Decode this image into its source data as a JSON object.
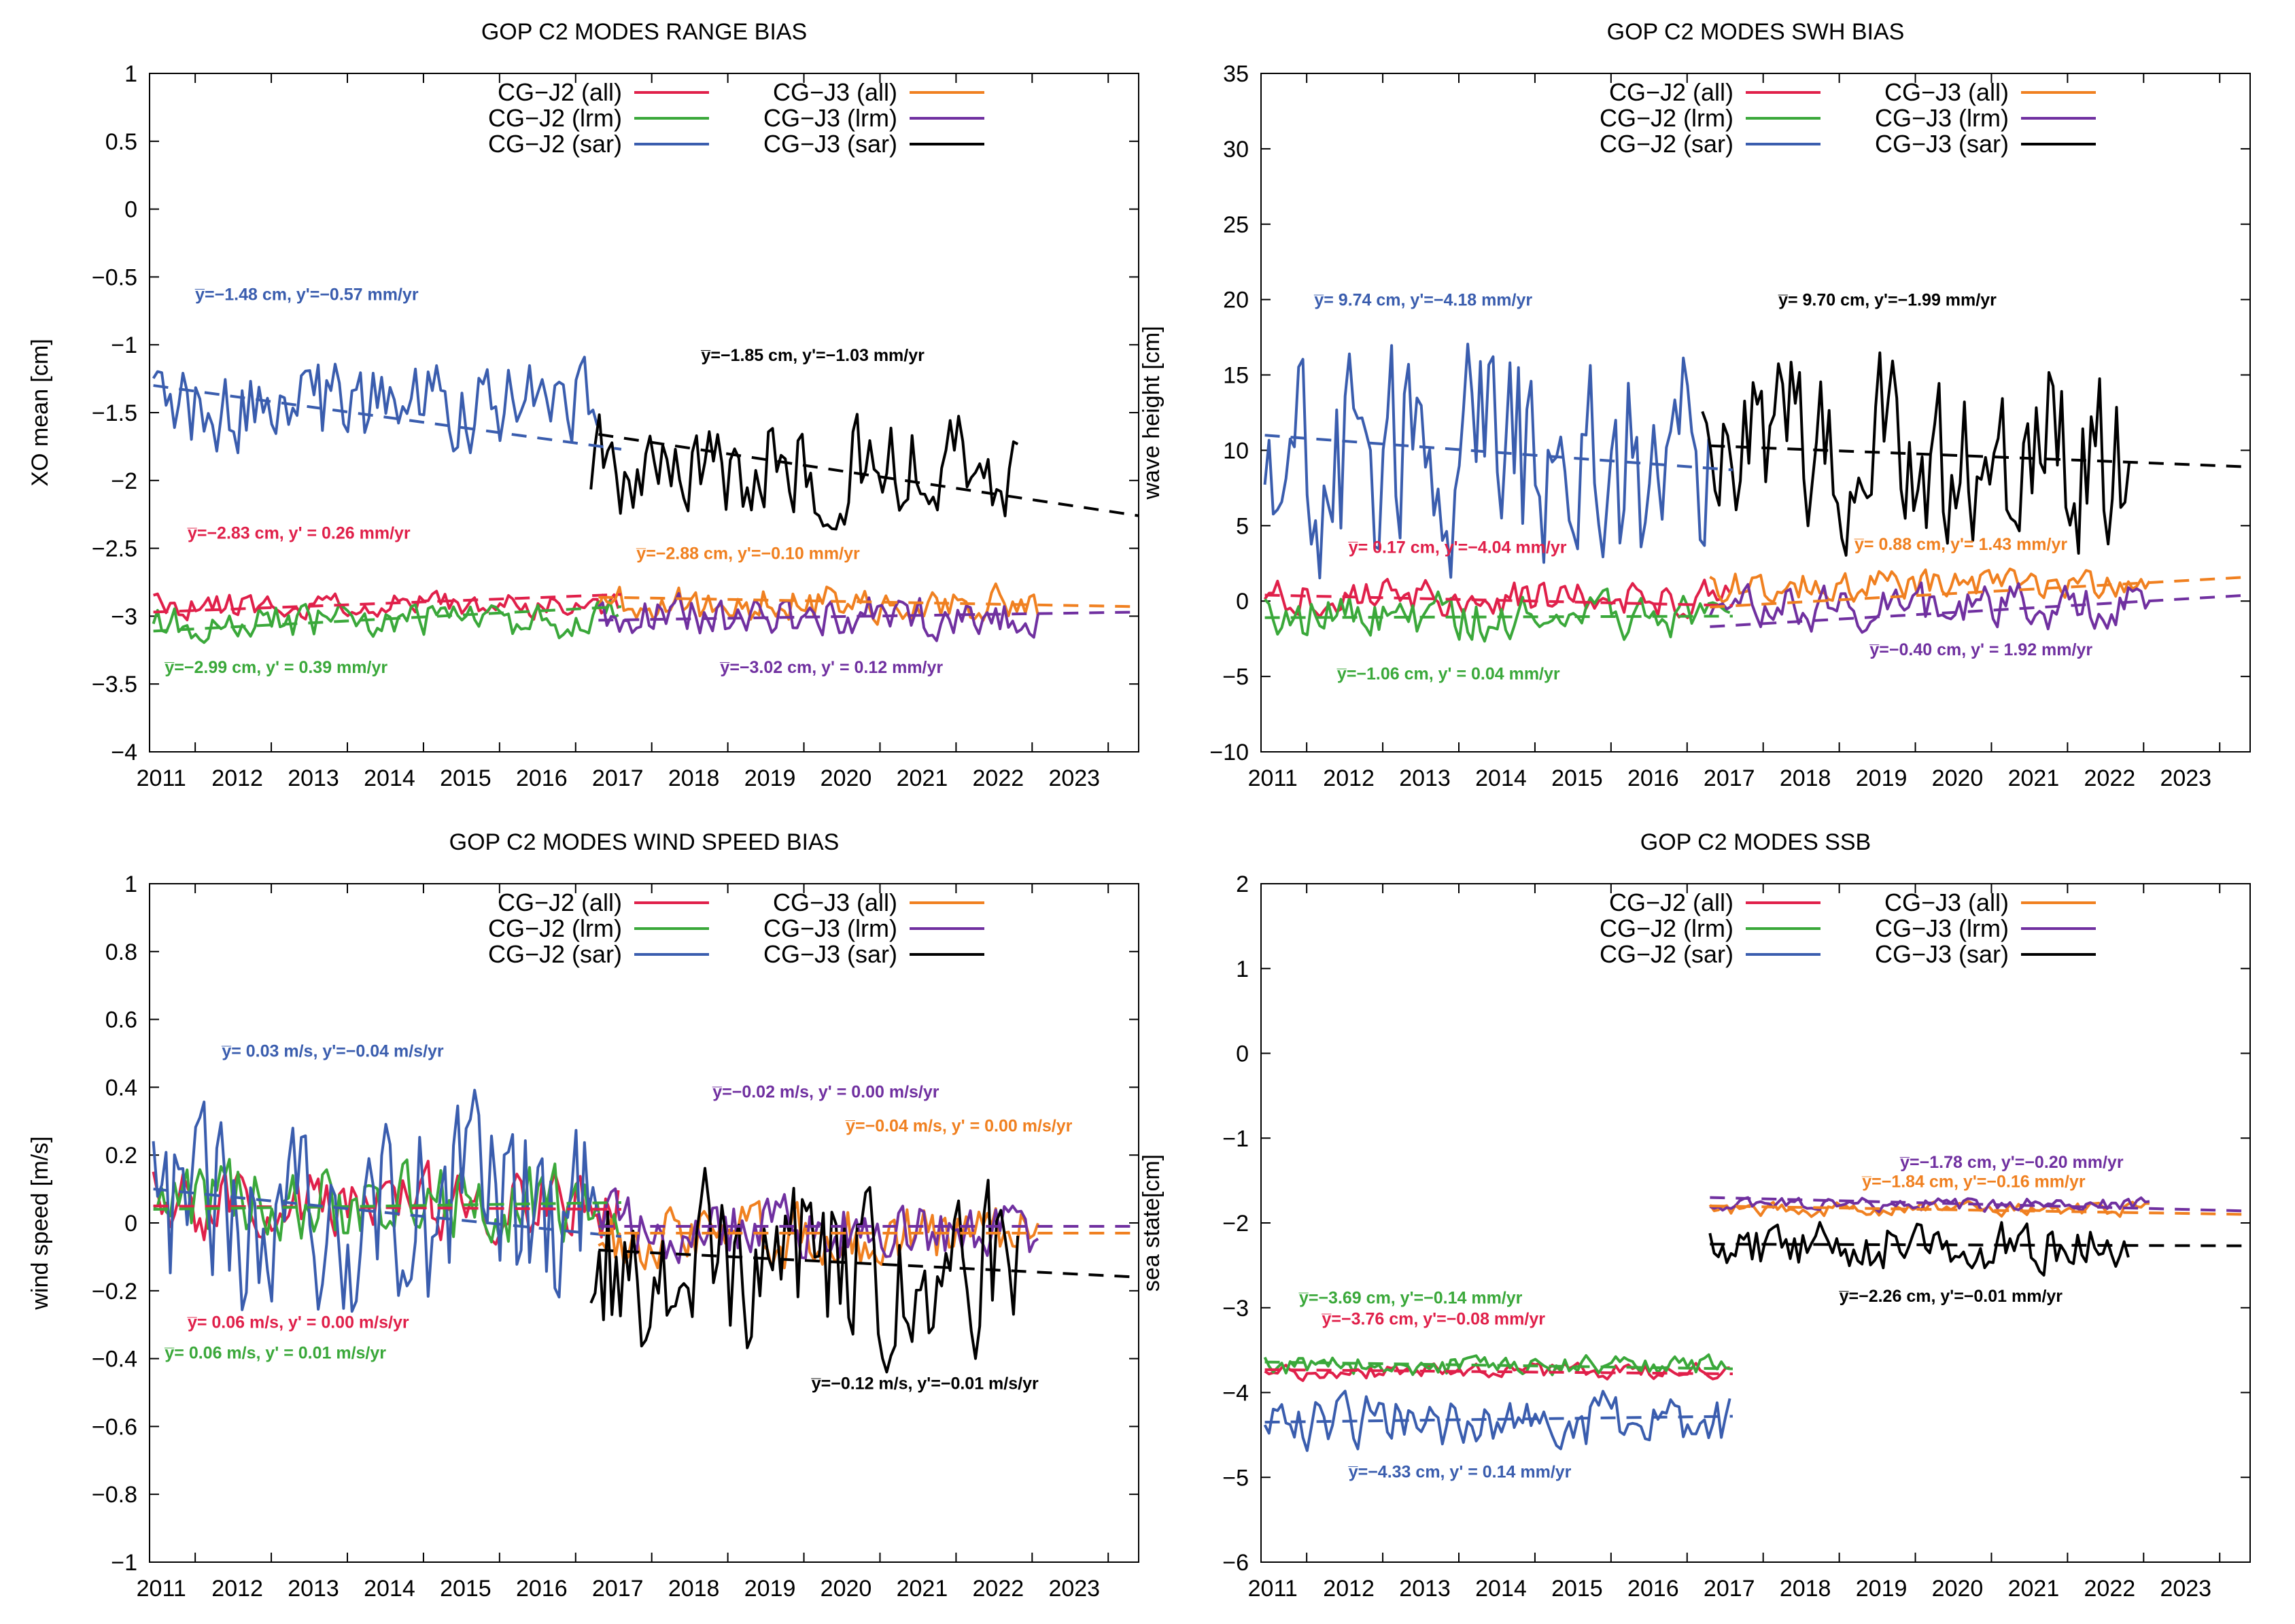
{
  "figure": {
    "colors": {
      "cg_j2_all": "#e0204a",
      "cg_j2_lrm": "#3aa83a",
      "cg_j2_sar": "#3a5dae",
      "cg_j3_all": "#f08020",
      "cg_j3_lrm": "#7030a0",
      "cg_j3_sar": "#000000"
    }
  },
  "chart_data": [
    {
      "id": "range",
      "type": "line",
      "title": "GOP C2 MODES RANGE BIAS",
      "ylabel": "XO mean [cm]",
      "xlabel": "",
      "xlim": [
        2010.4,
        2023.4
      ],
      "ylim": [
        -4,
        1
      ],
      "yticks": [
        -4,
        -3.5,
        -3,
        -2.5,
        -2,
        -1.5,
        -1,
        -0.5,
        0,
        0.5,
        1
      ],
      "ytick_labels": [
        "−4",
        "−3.5",
        "−3",
        "−2.5",
        "−2",
        "−1.5",
        "−1",
        "−0.5",
        "0",
        "0.5",
        "1"
      ],
      "xticks": [
        2011,
        2012,
        2013,
        2014,
        2015,
        2016,
        2017,
        2018,
        2019,
        2020,
        2021,
        2022,
        2023
      ],
      "xtick_labels": [
        "2011",
        "2012",
        "2013",
        "2014",
        "2015",
        "2016",
        "2017",
        "2018",
        "2019",
        "2020",
        "2021",
        "2022",
        "2023"
      ],
      "legend": [
        "CG−J2 (all)",
        "CG−J2 (lrm)",
        "CG−J2 (sar)",
        "CG−J3 (all)",
        "CG−J3 (lrm)",
        "CG−J3 (sar)"
      ],
      "series": [
        {
          "name": "CG−J2 (all)",
          "key": "cg_j2_all",
          "x_start": 2010.45,
          "x_end": 2016.6,
          "center": -2.92,
          "amp": 0.08,
          "seed": 11
        },
        {
          "name": "CG−J2 (lrm)",
          "key": "cg_j2_lrm",
          "x_start": 2010.45,
          "x_end": 2016.6,
          "center": -3.03,
          "amp": 0.12,
          "seed": 12
        },
        {
          "name": "CG−J2 (sar)",
          "key": "cg_j2_sar",
          "x_start": 2010.45,
          "x_end": 2016.3,
          "center": -1.45,
          "amp": 0.28,
          "seed": 13
        },
        {
          "name": "CG−J3 (all)",
          "key": "cg_j3_all",
          "x_start": 2016.3,
          "x_end": 2022.1,
          "center": -2.9,
          "amp": 0.12,
          "seed": 14
        },
        {
          "name": "CG−J3 (lrm)",
          "key": "cg_j3_lrm",
          "x_start": 2016.3,
          "x_end": 2022.1,
          "center": -3.0,
          "amp": 0.13,
          "seed": 15
        },
        {
          "name": "CG−J3 (sar)",
          "key": "cg_j3_sar",
          "x_start": 2016.2,
          "x_end": 2021.85,
          "center": -1.85,
          "amp": 0.35,
          "seed": 16
        }
      ],
      "trends": [
        {
          "key": "cg_j2_all",
          "x": [
            2010.45,
            2016.6
          ],
          "y": [
            -2.97,
            -2.84
          ]
        },
        {
          "key": "cg_j2_lrm",
          "x": [
            2010.45,
            2016.6
          ],
          "y": [
            -3.11,
            -2.93
          ]
        },
        {
          "key": "cg_j2_sar",
          "x": [
            2010.45,
            2016.6
          ],
          "y": [
            -1.3,
            -1.77
          ]
        },
        {
          "key": "cg_j3_all",
          "x": [
            2016.3,
            2023.4
          ],
          "y": [
            -2.86,
            -2.93
          ]
        },
        {
          "key": "cg_j3_lrm",
          "x": [
            2016.3,
            2023.4
          ],
          "y": [
            -3.03,
            -2.97
          ]
        },
        {
          "key": "cg_j3_sar",
          "x": [
            2016.3,
            2023.4
          ],
          "y": [
            -1.66,
            -2.26
          ]
        }
      ],
      "annotations": [
        {
          "key": "cg_j2_sar",
          "text": "y̅=−1.48 cm, y'=−0.57 mm/yr",
          "x": 2011.0,
          "y": -0.67
        },
        {
          "key": "cg_j3_sar",
          "text": "y̅=−1.85 cm, y'=−1.03 mm/yr",
          "x": 2017.65,
          "y": -1.12
        },
        {
          "key": "cg_j2_all",
          "text": "y̅=−2.83 cm, y' = 0.26 mm/yr",
          "x": 2010.9,
          "y": -2.43
        },
        {
          "key": "cg_j3_all",
          "text": "y̅=−2.88 cm, y'=−0.10 mm/yr",
          "x": 2016.8,
          "y": -2.58
        },
        {
          "key": "cg_j2_lrm",
          "text": "y̅=−2.99 cm, y' = 0.39 mm/yr",
          "x": 2010.6,
          "y": -3.42
        },
        {
          "key": "cg_j3_lrm",
          "text": "y̅=−3.02 cm, y' = 0.12 mm/yr",
          "x": 2017.9,
          "y": -3.42
        }
      ]
    },
    {
      "id": "swh",
      "type": "line",
      "title": "GOP C2 MODES SWH BIAS",
      "ylabel": "wave height [cm]",
      "xlabel": "",
      "xlim": [
        2010.4,
        2023.4
      ],
      "ylim": [
        -10,
        35
      ],
      "yticks": [
        -10,
        -5,
        0,
        5,
        10,
        15,
        20,
        25,
        30,
        35
      ],
      "ytick_labels": [
        "−10",
        "−5",
        "0",
        "5",
        "10",
        "15",
        "20",
        "25",
        "30",
        "35"
      ],
      "xticks": [
        2011,
        2012,
        2013,
        2014,
        2015,
        2016,
        2017,
        2018,
        2019,
        2020,
        2021,
        2022,
        2023
      ],
      "xtick_labels": [
        "2011",
        "2012",
        "2013",
        "2014",
        "2015",
        "2016",
        "2017",
        "2018",
        "2019",
        "2020",
        "2021",
        "2022",
        "2023"
      ],
      "legend": [
        "CG−J2 (all)",
        "CG−J2 (lrm)",
        "CG−J2 (sar)",
        "CG−J3 (all)",
        "CG−J3 (lrm)",
        "CG−J3 (sar)"
      ],
      "series": [
        {
          "name": "CG−J2 (all)",
          "key": "cg_j2_all",
          "x_start": 2010.45,
          "x_end": 2016.6,
          "center": 0.2,
          "amp": 1.0,
          "seed": 21
        },
        {
          "name": "CG−J2 (lrm)",
          "key": "cg_j2_lrm",
          "x_start": 2010.45,
          "x_end": 2016.6,
          "center": -1.0,
          "amp": 1.3,
          "seed": 22
        },
        {
          "name": "CG−J2 (sar)",
          "key": "cg_j2_sar",
          "x_start": 2010.45,
          "x_end": 2016.3,
          "center": 9.5,
          "amp": 6.5,
          "seed": 23
        },
        {
          "name": "CG−J3 (all)",
          "key": "cg_j3_all",
          "x_start": 2016.3,
          "x_end": 2022.1,
          "center": 1.0,
          "amp": 0.9,
          "seed": 24
        },
        {
          "name": "CG−J3 (lrm)",
          "key": "cg_j3_lrm",
          "x_start": 2016.3,
          "x_end": 2022.1,
          "center": -0.4,
          "amp": 1.3,
          "seed": 25
        },
        {
          "name": "CG−J3 (sar)",
          "key": "cg_j3_sar",
          "x_start": 2016.2,
          "x_end": 2021.85,
          "center": 10.0,
          "amp": 5.5,
          "seed": 26
        }
      ],
      "trends": [
        {
          "key": "cg_j2_all",
          "x": [
            2010.45,
            2016.6
          ],
          "y": [
            0.4,
            -0.3
          ]
        },
        {
          "key": "cg_j2_lrm",
          "x": [
            2010.45,
            2016.6
          ],
          "y": [
            -1.1,
            -1.0
          ]
        },
        {
          "key": "cg_j2_sar",
          "x": [
            2010.45,
            2016.6
          ],
          "y": [
            11.0,
            8.7
          ]
        },
        {
          "key": "cg_j3_all",
          "x": [
            2016.3,
            2023.4
          ],
          "y": [
            -0.4,
            1.6
          ]
        },
        {
          "key": "cg_j3_lrm",
          "x": [
            2016.3,
            2023.4
          ],
          "y": [
            -1.7,
            0.4
          ]
        },
        {
          "key": "cg_j3_sar",
          "x": [
            2016.3,
            2023.4
          ],
          "y": [
            10.3,
            8.9
          ]
        }
      ],
      "annotations": [
        {
          "key": "cg_j2_sar",
          "text": "y̅= 9.74 cm, y'=−4.18 mm/yr",
          "x": 2011.1,
          "y": 19.6
        },
        {
          "key": "cg_j3_sar",
          "text": "y̅= 9.70 cm, y'=−1.99 mm/yr",
          "x": 2017.2,
          "y": 19.6
        },
        {
          "key": "cg_j2_all",
          "text": "y̅= 0.17 cm, y'=−4.04 mm/yr",
          "x": 2011.55,
          "y": 3.2
        },
        {
          "key": "cg_j3_all",
          "text": "y̅= 0.88 cm, y'= 1.43 mm/yr",
          "x": 2018.2,
          "y": 3.4
        },
        {
          "key": "cg_j2_lrm",
          "text": "y̅=−1.06 cm, y' = 0.04 mm/yr",
          "x": 2011.4,
          "y": -5.2
        },
        {
          "key": "cg_j3_lrm",
          "text": "y̅=−0.40 cm, y' = 1.92 mm/yr",
          "x": 2018.4,
          "y": -3.6
        }
      ]
    },
    {
      "id": "wind",
      "type": "line",
      "title": "GOP C2 MODES WIND SPEED BIAS",
      "ylabel": "wind speed [m/s]",
      "xlabel": "",
      "xlim": [
        2010.4,
        2023.4
      ],
      "ylim": [
        -1,
        1
      ],
      "yticks": [
        -1,
        -0.8,
        -0.6,
        -0.4,
        -0.2,
        0,
        0.2,
        0.4,
        0.6,
        0.8,
        1
      ],
      "ytick_labels": [
        "−1",
        "−0.8",
        "−0.6",
        "−0.4",
        "−0.2",
        "0",
        "0.2",
        "0.4",
        "0.6",
        "0.8",
        "1"
      ],
      "xticks": [
        2011,
        2012,
        2013,
        2014,
        2015,
        2016,
        2017,
        2018,
        2019,
        2020,
        2021,
        2022,
        2023
      ],
      "xtick_labels": [
        "2011",
        "2012",
        "2013",
        "2014",
        "2015",
        "2016",
        "2017",
        "2018",
        "2019",
        "2020",
        "2021",
        "2022",
        "2023"
      ],
      "legend": [
        "CG−J2 (all)",
        "CG−J2 (lrm)",
        "CG−J2 (sar)",
        "CG−J3 (all)",
        "CG−J3 (lrm)",
        "CG−J3 (sar)"
      ],
      "series": [
        {
          "name": "CG−J2 (all)",
          "key": "cg_j2_all",
          "x_start": 2010.45,
          "x_end": 2016.6,
          "center": 0.06,
          "amp": 0.09,
          "seed": 31
        },
        {
          "name": "CG−J2 (lrm)",
          "key": "cg_j2_lrm",
          "x_start": 2010.45,
          "x_end": 2016.6,
          "center": 0.06,
          "amp": 0.1,
          "seed": 32
        },
        {
          "name": "CG−J2 (sar)",
          "key": "cg_j2_sar",
          "x_start": 2010.45,
          "x_end": 2016.3,
          "center": 0.03,
          "amp": 0.26,
          "seed": 33
        },
        {
          "name": "CG−J3 (all)",
          "key": "cg_j3_all",
          "x_start": 2016.3,
          "x_end": 2022.1,
          "center": -0.04,
          "amp": 0.08,
          "seed": 34
        },
        {
          "name": "CG−J3 (lrm)",
          "key": "cg_j3_lrm",
          "x_start": 2016.3,
          "x_end": 2022.1,
          "center": -0.02,
          "amp": 0.08,
          "seed": 35
        },
        {
          "name": "CG−J3 (sar)",
          "key": "cg_j3_sar",
          "x_start": 2016.2,
          "x_end": 2021.85,
          "center": -0.12,
          "amp": 0.22,
          "seed": 36
        }
      ],
      "trends": [
        {
          "key": "cg_j2_all",
          "x": [
            2010.45,
            2016.6
          ],
          "y": [
            0.05,
            0.04
          ]
        },
        {
          "key": "cg_j2_lrm",
          "x": [
            2010.45,
            2016.6
          ],
          "y": [
            0.04,
            0.06
          ]
        },
        {
          "key": "cg_j2_sar",
          "x": [
            2010.45,
            2016.6
          ],
          "y": [
            0.1,
            -0.04
          ]
        },
        {
          "key": "cg_j3_all",
          "x": [
            2016.3,
            2023.4
          ],
          "y": [
            -0.03,
            -0.03
          ]
        },
        {
          "key": "cg_j3_lrm",
          "x": [
            2016.3,
            2023.4
          ],
          "y": [
            -0.01,
            -0.01
          ]
        },
        {
          "key": "cg_j3_sar",
          "x": [
            2016.3,
            2023.4
          ],
          "y": [
            -0.08,
            -0.16
          ]
        }
      ],
      "annotations": [
        {
          "key": "cg_j2_sar",
          "text": "y̅= 0.03 m/s, y'=−0.04 m/s/yr",
          "x": 2011.35,
          "y": 0.49
        },
        {
          "key": "cg_j3_lrm",
          "text": "y̅=−0.02 m/s, y' = 0.00 m/s/yr",
          "x": 2017.8,
          "y": 0.37
        },
        {
          "key": "cg_j3_all",
          "text": "y̅=−0.04 m/s, y' = 0.00 m/s/yr",
          "x": 2019.55,
          "y": 0.27
        },
        {
          "key": "cg_j2_all",
          "text": "y̅= 0.06 m/s, y' = 0.00 m/s/yr",
          "x": 2010.9,
          "y": -0.31
        },
        {
          "key": "cg_j2_lrm",
          "text": "y̅= 0.06 m/s, y' = 0.01 m/s/yr",
          "x": 2010.6,
          "y": -0.4
        },
        {
          "key": "cg_j3_sar",
          "text": "y̅=−0.12 m/s, y'=−0.01 m/s/yr",
          "x": 2019.1,
          "y": -0.49
        }
      ]
    },
    {
      "id": "ssb",
      "type": "line",
      "title": "GOP C2 MODES SSB",
      "ylabel": "sea state[cm]",
      "xlabel": "",
      "xlim": [
        2010.4,
        2023.4
      ],
      "ylim": [
        -6,
        2
      ],
      "yticks": [
        -6,
        -5,
        -4,
        -3,
        -2,
        -1,
        0,
        1,
        2
      ],
      "ytick_labels": [
        "−6",
        "−5",
        "−4",
        "−3",
        "−2",
        "−1",
        "0",
        "1",
        "2"
      ],
      "xticks": [
        2011,
        2012,
        2013,
        2014,
        2015,
        2016,
        2017,
        2018,
        2019,
        2020,
        2021,
        2022,
        2023
      ],
      "xtick_labels": [
        "2011",
        "2012",
        "2013",
        "2014",
        "2015",
        "2016",
        "2017",
        "2018",
        "2019",
        "2020",
        "2021",
        "2022",
        "2023"
      ],
      "legend": [
        "CG−J2 (all)",
        "CG−J2 (lrm)",
        "CG−J2 (sar)",
        "CG−J3 (all)",
        "CG−J3 (lrm)",
        "CG−J3 (sar)"
      ],
      "series": [
        {
          "name": "CG−J2 (all)",
          "key": "cg_j2_all",
          "x_start": 2010.45,
          "x_end": 2016.6,
          "center": -3.75,
          "amp": 0.08,
          "seed": 41
        },
        {
          "name": "CG−J2 (lrm)",
          "key": "cg_j2_lrm",
          "x_start": 2010.45,
          "x_end": 2016.6,
          "center": -3.68,
          "amp": 0.1,
          "seed": 42
        },
        {
          "name": "CG−J2 (sar)",
          "key": "cg_j2_sar",
          "x_start": 2010.45,
          "x_end": 2016.6,
          "center": -4.33,
          "amp": 0.28,
          "seed": 43
        },
        {
          "name": "CG−J3 (all)",
          "key": "cg_j3_all",
          "x_start": 2016.3,
          "x_end": 2022.1,
          "center": -1.84,
          "amp": 0.07,
          "seed": 44
        },
        {
          "name": "CG−J3 (lrm)",
          "key": "cg_j3_lrm",
          "x_start": 2016.3,
          "x_end": 2022.1,
          "center": -1.78,
          "amp": 0.07,
          "seed": 45
        },
        {
          "name": "CG−J3 (sar)",
          "key": "cg_j3_sar",
          "x_start": 2016.3,
          "x_end": 2021.85,
          "center": -2.26,
          "amp": 0.25,
          "seed": 46
        }
      ],
      "trends": [
        {
          "key": "cg_j2_all",
          "x": [
            2010.45,
            2016.6
          ],
          "y": [
            -3.73,
            -3.78
          ]
        },
        {
          "key": "cg_j2_lrm",
          "x": [
            2010.45,
            2016.6
          ],
          "y": [
            -3.64,
            -3.72
          ]
        },
        {
          "key": "cg_j2_sar",
          "x": [
            2010.45,
            2016.6
          ],
          "y": [
            -4.35,
            -4.28
          ]
        },
        {
          "key": "cg_j3_all",
          "x": [
            2016.3,
            2023.4
          ],
          "y": [
            -1.8,
            -1.9
          ]
        },
        {
          "key": "cg_j3_lrm",
          "x": [
            2016.3,
            2023.4
          ],
          "y": [
            -1.7,
            -1.86
          ]
        },
        {
          "key": "cg_j3_sar",
          "x": [
            2016.3,
            2023.4
          ],
          "y": [
            -2.25,
            -2.27
          ]
        }
      ],
      "annotations": [
        {
          "key": "cg_j3_lrm",
          "text": "y̅=−1.78 cm, y'=−0.20 mm/yr",
          "x": 2018.8,
          "y": -1.35
        },
        {
          "key": "cg_j3_all",
          "text": "y̅=−1.84 cm, y'=−0.16 mm/yr",
          "x": 2018.3,
          "y": -1.58
        },
        {
          "key": "cg_j3_sar",
          "text": "y̅=−2.26 cm, y'=−0.01 mm/yr",
          "x": 2018.0,
          "y": -2.93
        },
        {
          "key": "cg_j2_lrm",
          "text": "y̅=−3.69 cm, y'=−0.14 mm/yr",
          "x": 2010.9,
          "y": -2.95
        },
        {
          "key": "cg_j2_all",
          "text": "y̅=−3.76 cm, y'=−0.08 mm/yr",
          "x": 2011.2,
          "y": -3.2
        },
        {
          "key": "cg_j2_sar",
          "text": "y̅=−4.33 cm, y' = 0.14 mm/yr",
          "x": 2011.55,
          "y": -5.0
        }
      ]
    }
  ]
}
